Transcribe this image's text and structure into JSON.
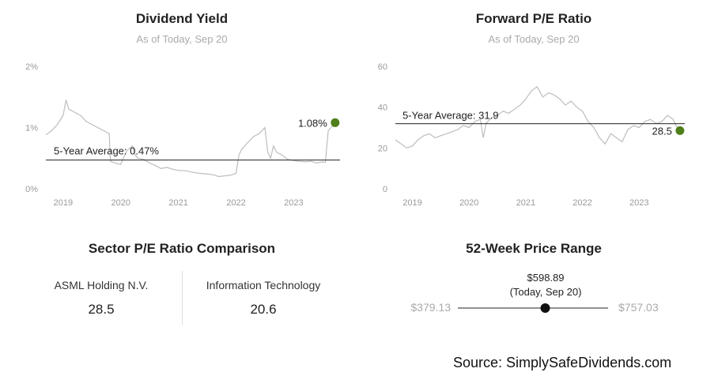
{
  "charts": {
    "yield": {
      "title": "Dividend Yield",
      "subtitle": "As of Today, Sep 20",
      "avg_label": "5-Year Average: 0.47%",
      "current_label": "1.08%"
    },
    "pe": {
      "title": "Forward P/E Ratio",
      "subtitle": "As of Today, Sep 20",
      "avg_label": "5-Year Average: 31.9",
      "current_label": "28.5"
    }
  },
  "chart_data": [
    {
      "type": "line",
      "title": "Dividend Yield",
      "subtitle": "As of Today, Sep 20",
      "y_ticks": [
        "2%",
        "1%",
        "0%"
      ],
      "x_ticks": [
        "2019",
        "2020",
        "2021",
        "2022",
        "2023"
      ],
      "ylim": [
        0,
        2
      ],
      "xlim": [
        2018.7,
        2023.75
      ],
      "average": 0.47,
      "current": 1.08,
      "x": [
        2018.7,
        2018.8,
        2018.9,
        2019.0,
        2019.05,
        2019.1,
        2019.2,
        2019.3,
        2019.4,
        2019.5,
        2019.6,
        2019.7,
        2019.8,
        2019.82,
        2019.9,
        2020.0,
        2020.1,
        2020.2,
        2020.25,
        2020.3,
        2020.4,
        2020.5,
        2020.6,
        2020.7,
        2020.8,
        2020.9,
        2021.0,
        2021.1,
        2021.2,
        2021.3,
        2021.4,
        2021.5,
        2021.6,
        2021.7,
        2021.8,
        2021.9,
        2022.0,
        2022.05,
        2022.1,
        2022.2,
        2022.3,
        2022.4,
        2022.5,
        2022.55,
        2022.6,
        2022.65,
        2022.7,
        2022.8,
        2022.9,
        2023.0,
        2023.1,
        2023.2,
        2023.3,
        2023.4,
        2023.5,
        2023.55,
        2023.6,
        2023.65,
        2023.7,
        2023.72
      ],
      "y": [
        0.88,
        0.95,
        1.05,
        1.2,
        1.45,
        1.3,
        1.25,
        1.2,
        1.1,
        1.05,
        1.0,
        0.95,
        0.9,
        0.45,
        0.42,
        0.4,
        0.62,
        0.7,
        0.55,
        0.5,
        0.48,
        0.42,
        0.38,
        0.33,
        0.35,
        0.32,
        0.3,
        0.3,
        0.28,
        0.26,
        0.25,
        0.24,
        0.23,
        0.2,
        0.21,
        0.22,
        0.25,
        0.55,
        0.65,
        0.75,
        0.85,
        0.9,
        1.0,
        0.6,
        0.5,
        0.7,
        0.6,
        0.55,
        0.48,
        0.46,
        0.45,
        0.44,
        0.45,
        0.42,
        0.44,
        0.43,
        0.95,
        1.0,
        1.05,
        1.08
      ],
      "grid": false
    },
    {
      "type": "line",
      "title": "Forward P/E Ratio",
      "subtitle": "As of Today, Sep 20",
      "y_ticks": [
        "60",
        "40",
        "20",
        "0"
      ],
      "x_ticks": [
        "2019",
        "2020",
        "2021",
        "2022",
        "2023"
      ],
      "ylim": [
        0,
        60
      ],
      "xlim": [
        2018.7,
        2023.75
      ],
      "average": 31.9,
      "current": 28.5,
      "x": [
        2018.7,
        2018.8,
        2018.9,
        2019.0,
        2019.1,
        2019.2,
        2019.3,
        2019.4,
        2019.5,
        2019.6,
        2019.7,
        2019.8,
        2019.9,
        2020.0,
        2020.1,
        2020.2,
        2020.25,
        2020.3,
        2020.4,
        2020.5,
        2020.6,
        2020.7,
        2020.8,
        2020.9,
        2021.0,
        2021.1,
        2021.2,
        2021.3,
        2021.4,
        2021.5,
        2021.6,
        2021.7,
        2021.8,
        2021.9,
        2022.0,
        2022.1,
        2022.2,
        2022.3,
        2022.4,
        2022.5,
        2022.6,
        2022.7,
        2022.8,
        2022.9,
        2023.0,
        2023.1,
        2023.2,
        2023.3,
        2023.4,
        2023.5,
        2023.6,
        2023.65,
        2023.7,
        2023.72
      ],
      "y": [
        24,
        22,
        20,
        21,
        24,
        26,
        27,
        25,
        26,
        27,
        28,
        29,
        31,
        30,
        33,
        34,
        25,
        32,
        35,
        36,
        38,
        37,
        39,
        41,
        44,
        48,
        50,
        45,
        47,
        46,
        44,
        41,
        43,
        40,
        38,
        33,
        30,
        25,
        22,
        27,
        25,
        23,
        29,
        31,
        30,
        33,
        34,
        32,
        33,
        36,
        34,
        31,
        29,
        28.5
      ],
      "grid": false
    }
  ],
  "sector": {
    "title": "Sector P/E Ratio Comparison",
    "left_name": "ASML Holding N.V.",
    "left_value": "28.5",
    "right_name": "Information Technology",
    "right_value": "20.6"
  },
  "range": {
    "title": "52-Week Price Range",
    "low": "$379.13",
    "high": "$757.03",
    "current_price": "$598.89",
    "current_date": "(Today, Sep 20)",
    "low_value": 379.13,
    "high_value": 757.03,
    "current_value": 598.89
  },
  "source": "Source: SimplySafeDividends.com",
  "colors": {
    "marker": "#4f7f1a",
    "line": "#bdbdbd",
    "average": "#222222"
  }
}
